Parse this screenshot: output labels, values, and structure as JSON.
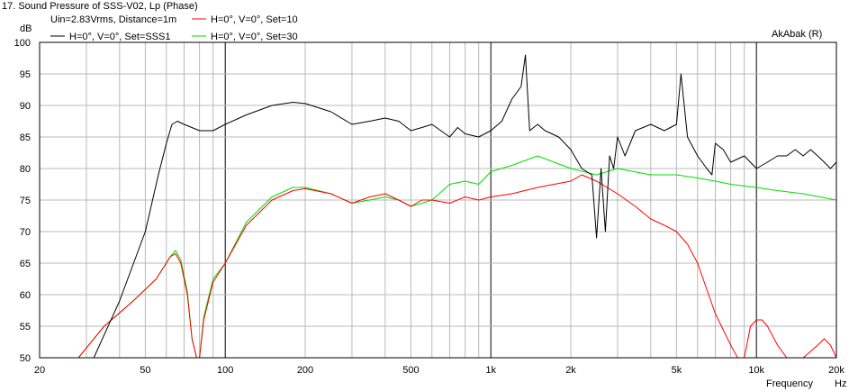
{
  "chart_data": {
    "type": "line",
    "title": "17. Sound Pressure of SSS-V02, Lp (Phase)",
    "subtitle": "Uin=2.83Vrms, Distance=1m",
    "watermark": "AkAbak (R)",
    "ylabel": "dB",
    "xlabel": "Frequency",
    "xunit": "Hz",
    "xscale": "log",
    "xlim": [
      20,
      20000
    ],
    "ylim": [
      50,
      100
    ],
    "grid": true,
    "legend_position": "top-left",
    "x_tick_labels": [
      "20",
      "50",
      "100",
      "200",
      "500",
      "1k",
      "2k",
      "5k",
      "10k",
      "20k"
    ],
    "x_tick_values": [
      20,
      50,
      100,
      200,
      500,
      1000,
      2000,
      5000,
      10000,
      20000
    ],
    "y_ticks": [
      50,
      55,
      60,
      65,
      70,
      75,
      80,
      85,
      90,
      95,
      100
    ],
    "series": [
      {
        "name": "H=0°, V=0°, Set=SSS1",
        "color": "#000000",
        "x": [
          20,
          28,
          32,
          40,
          50,
          56,
          60,
          63,
          66,
          70,
          80,
          90,
          100,
          120,
          150,
          180,
          200,
          250,
          300,
          350,
          400,
          450,
          500,
          550,
          600,
          700,
          750,
          800,
          900,
          1000,
          1100,
          1200,
          1300,
          1350,
          1400,
          1500,
          1600,
          1800,
          2000,
          2200,
          2400,
          2500,
          2600,
          2700,
          2800,
          2900,
          3000,
          3200,
          3500,
          4000,
          4500,
          5000,
          5200,
          5500,
          6000,
          6500,
          6800,
          7000,
          7500,
          8000,
          9000,
          10000,
          11000,
          12000,
          13000,
          14000,
          15000,
          16000,
          17000,
          18000,
          19000,
          20000
        ],
        "y": [
          50,
          50,
          50,
          59,
          70,
          79,
          84,
          87,
          87.5,
          87,
          86,
          86,
          87,
          88.5,
          90,
          90.5,
          90.3,
          89,
          87,
          87.5,
          88,
          87.5,
          86,
          86.5,
          87,
          85,
          86.5,
          85.5,
          85,
          86,
          87.5,
          91,
          93,
          98,
          86,
          87,
          86,
          85,
          83,
          80,
          79,
          69,
          80,
          70,
          82,
          80,
          85,
          82,
          86,
          87,
          86,
          87,
          95,
          85,
          82,
          80,
          79,
          84,
          83,
          81,
          82,
          80,
          81,
          82,
          82,
          83,
          82,
          83,
          82,
          81,
          80,
          81
        ]
      },
      {
        "name": "H=0°, V=0°, Set=10",
        "color": "#ff0000",
        "x": [
          20,
          28,
          35,
          45,
          55,
          62,
          65,
          68,
          72,
          75,
          78,
          80,
          83,
          90,
          100,
          120,
          150,
          180,
          200,
          250,
          300,
          350,
          400,
          450,
          500,
          550,
          600,
          700,
          800,
          900,
          1000,
          1200,
          1500,
          2000,
          2200,
          2500,
          3000,
          3500,
          4000,
          4500,
          5000,
          5500,
          6000,
          7000,
          8000,
          8500,
          9000,
          9500,
          10000,
          10500,
          11000,
          12000,
          13000,
          14000,
          15000,
          16000,
          17000,
          18000,
          19000,
          20000
        ],
        "y": [
          50,
          50,
          55,
          59,
          62.5,
          66,
          66.5,
          65,
          60,
          53,
          50,
          50,
          56,
          62,
          65,
          71,
          75,
          76.5,
          76.8,
          76,
          74.5,
          75.5,
          76,
          75,
          74,
          75,
          75,
          74.5,
          75.5,
          75,
          75.5,
          76,
          77,
          78,
          79,
          78,
          76,
          74,
          72,
          71,
          70,
          68,
          65,
          57,
          52,
          50,
          50,
          55,
          56,
          56,
          55,
          52,
          50,
          50,
          50,
          51,
          52,
          53,
          52,
          50
        ]
      },
      {
        "name": "H=0°, V=0°, Set=30",
        "color": "#00dd00",
        "x": [
          20,
          28,
          35,
          45,
          55,
          62,
          65,
          68,
          72,
          75,
          78,
          80,
          83,
          90,
          100,
          120,
          150,
          180,
          200,
          250,
          300,
          350,
          400,
          450,
          500,
          550,
          600,
          700,
          800,
          900,
          1000,
          1200,
          1500,
          2000,
          2500,
          3000,
          4000,
          5000,
          6000,
          7000,
          8000,
          10000,
          12000,
          15000,
          20000
        ],
        "y": [
          50,
          50,
          55,
          59,
          62.5,
          66,
          67,
          65.5,
          60.5,
          53,
          50,
          50,
          56.5,
          62.5,
          65,
          71.5,
          75.5,
          77,
          77,
          76,
          74.5,
          75,
          75.5,
          75,
          74,
          74.5,
          75,
          77.5,
          78,
          77.5,
          79.5,
          80.5,
          82,
          80,
          79,
          80,
          79,
          79,
          78.5,
          78,
          77.5,
          77,
          76.5,
          76,
          75
        ]
      }
    ]
  }
}
